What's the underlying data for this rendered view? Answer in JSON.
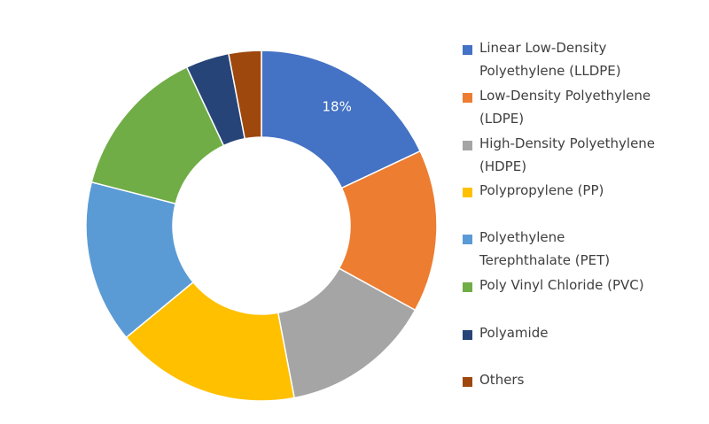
{
  "chart_data": {
    "type": "donut",
    "categories": [
      "Linear Low-Density Polyethylene (LLDPE)",
      "Low-Density Polyethylene (LDPE)",
      "High-Density Polyethylene (HDPE)",
      "Polypropylene (PP)",
      "Polyethylene Terephthalate (PET)",
      "Poly Vinyl Chloride (PVC)",
      "Polyamide",
      "Others"
    ],
    "values": [
      18,
      15,
      14,
      17,
      15,
      14,
      4,
      3
    ],
    "value_labels": [
      "18%",
      null,
      null,
      null,
      null,
      null,
      null,
      null
    ],
    "colors": [
      "#4472c4",
      "#ed7d31",
      "#a5a5a5",
      "#ffc000",
      "#5b9bd5",
      "#70ad47",
      "#264478",
      "#9e480e"
    ],
    "legend": "right"
  }
}
